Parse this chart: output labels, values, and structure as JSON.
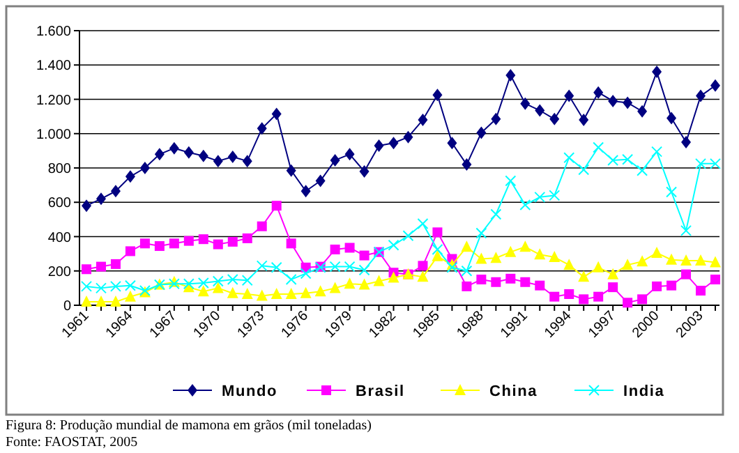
{
  "chart_data": {
    "type": "line",
    "categories": [
      "1961",
      null,
      null,
      "1964",
      null,
      null,
      "1967",
      null,
      null,
      "1970",
      null,
      null,
      "1973",
      null,
      null,
      "1976",
      null,
      null,
      "1979",
      null,
      null,
      "1982",
      null,
      null,
      "1985",
      null,
      null,
      "1988",
      null,
      null,
      "1991",
      null,
      null,
      "1994",
      null,
      null,
      "1997",
      null,
      null,
      "2000",
      null,
      null,
      "2003",
      null
    ],
    "series": [
      {
        "name": "Mundo",
        "color": "#000080",
        "marker": "diamond",
        "values": [
          580,
          620,
          665,
          750,
          800,
          880,
          915,
          890,
          870,
          840,
          865,
          840,
          1030,
          1115,
          785,
          665,
          725,
          845,
          880,
          780,
          930,
          945,
          980,
          1080,
          1225,
          945,
          820,
          1005,
          1085,
          1340,
          1175,
          1135,
          1085,
          1220,
          1080,
          1240,
          1190,
          1180,
          1130,
          1360,
          1090,
          950,
          1220,
          1280
        ]
      },
      {
        "name": "Brasil",
        "color": "#ff00ff",
        "marker": "square",
        "values": [
          210,
          225,
          240,
          315,
          360,
          345,
          360,
          375,
          385,
          355,
          370,
          390,
          460,
          580,
          360,
          220,
          225,
          325,
          335,
          290,
          310,
          190,
          180,
          230,
          425,
          270,
          110,
          150,
          135,
          155,
          135,
          115,
          50,
          65,
          35,
          50,
          105,
          15,
          35,
          110,
          115,
          180,
          85,
          150
        ]
      },
      {
        "name": "China",
        "color": "#ffff00",
        "marker": "triangle",
        "values": [
          20,
          20,
          20,
          50,
          75,
          120,
          135,
          105,
          80,
          100,
          70,
          65,
          55,
          65,
          65,
          70,
          80,
          100,
          125,
          120,
          140,
          160,
          180,
          165,
          285,
          235,
          340,
          270,
          275,
          310,
          340,
          295,
          280,
          235,
          165,
          220,
          180,
          235,
          255,
          305,
          265,
          260,
          260,
          250
        ]
      },
      {
        "name": "India",
        "color": "#00ffff",
        "marker": "cross",
        "values": [
          110,
          100,
          110,
          115,
          85,
          120,
          125,
          125,
          130,
          140,
          150,
          145,
          230,
          220,
          150,
          185,
          220,
          225,
          225,
          205,
          310,
          350,
          405,
          475,
          325,
          220,
          200,
          420,
          530,
          725,
          585,
          630,
          640,
          860,
          790,
          920,
          845,
          850,
          785,
          895,
          660,
          435,
          825,
          825
        ]
      }
    ],
    "ylim": [
      0,
      1600
    ],
    "yticks": [
      {
        "value": 0,
        "label": "0"
      },
      {
        "value": 200,
        "label": "200"
      },
      {
        "value": 400,
        "label": "400"
      },
      {
        "value": 600,
        "label": "600"
      },
      {
        "value": 800,
        "label": "800"
      },
      {
        "value": 1000,
        "label": "1.000"
      },
      {
        "value": 1200,
        "label": "1.200"
      },
      {
        "value": 1400,
        "label": "1.400"
      },
      {
        "value": 1600,
        "label": "1.600"
      }
    ],
    "grid": "y",
    "legend": "bottom",
    "line_style": "solid",
    "annotations": [
      "Figura 8: Produção mundial de mamona em grãos (mil toneladas)",
      "Fonte: FAOSTAT, 2005"
    ]
  }
}
